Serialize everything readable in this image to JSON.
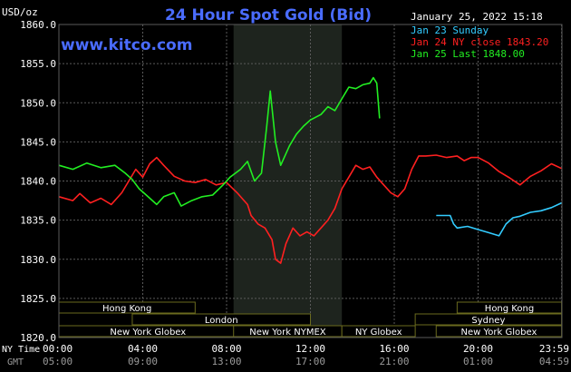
{
  "header": {
    "title": "24 Hour Spot Gold (Bid)",
    "unit_label": "USD/oz",
    "timestamp": "January 25, 2022 15:18",
    "site": "www.kitco.com"
  },
  "legend": [
    {
      "text": "Jan 23 Sunday",
      "color": "#33ccff"
    },
    {
      "text": "Jan 24 NY close 1843.20",
      "color": "#ff2020"
    },
    {
      "text": "Jan 25 Last 1848.00",
      "color": "#22ee22"
    }
  ],
  "row_labels": {
    "ny_time": "NY Time",
    "gmt": "GMT"
  },
  "sessions": [
    {
      "name": "Hong Kong",
      "start": "00:00",
      "end": "06:30",
      "row": 1
    },
    {
      "name": "London",
      "start": "03:30",
      "end": "12:00",
      "row": 2
    },
    {
      "name": "New York Globex",
      "start": "00:00",
      "end": "08:30",
      "row": 3
    },
    {
      "name": "New York NYMEX",
      "start": "08:20",
      "end": "13:30",
      "row": 3
    },
    {
      "name": "NY Globex",
      "start": "13:30",
      "end": "17:00",
      "row": 3
    },
    {
      "name": "Hong Kong",
      "start": "19:00",
      "end": "23:59",
      "row": 1
    },
    {
      "name": "Sydney",
      "start": "17:00",
      "end": "23:59",
      "row": 2
    },
    {
      "name": "New York Globex",
      "start": "18:00",
      "end": "23:59",
      "row": 3
    }
  ],
  "colors": {
    "background": "#000000",
    "grid": "#5a5a5a",
    "axis_text": "#ffffff",
    "title": "#4a6cff",
    "nymex_shade": "#1e241e",
    "session_bar": "#6a6a1e",
    "session_text": "#ffffff"
  },
  "chart_data": {
    "type": "line",
    "ylim": [
      1820,
      1860
    ],
    "yticks": [
      "1860.0",
      "1855.0",
      "1850.0",
      "1845.0",
      "1840.0",
      "1835.0",
      "1830.0",
      "1825.0",
      "1820.0"
    ],
    "ytick_values": [
      1860,
      1855,
      1850,
      1845,
      1840,
      1835,
      1830,
      1825,
      1820
    ],
    "x_ticks_ny": [
      "00:00",
      "04:00",
      "08:00",
      "12:00",
      "16:00",
      "20:00",
      "23:59"
    ],
    "x_ticks_gmt": [
      "05:00",
      "09:00",
      "13:00",
      "17:00",
      "21:00",
      "01:00",
      "04:59"
    ],
    "x_tick_hours": [
      0,
      4,
      8,
      12,
      16,
      20,
      23.983
    ],
    "shaded_region": [
      "08:20",
      "13:30"
    ],
    "series": [
      {
        "name": "Jan 23 Sunday",
        "color": "#33ccff",
        "points": [
          [
            "18:00",
            1835.6
          ],
          [
            "18:30",
            1835.6
          ],
          [
            "18:40",
            1835.6
          ],
          [
            "18:50",
            1834.5
          ],
          [
            "19:00",
            1834.0
          ],
          [
            "19:30",
            1834.2
          ],
          [
            "20:00",
            1833.8
          ],
          [
            "20:30",
            1833.4
          ],
          [
            "21:00",
            1833.0
          ],
          [
            "21:20",
            1834.5
          ],
          [
            "21:40",
            1835.3
          ],
          [
            "22:00",
            1835.5
          ],
          [
            "22:30",
            1836.0
          ],
          [
            "23:00",
            1836.2
          ],
          [
            "23:30",
            1836.6
          ],
          [
            "23:59",
            1837.2
          ]
        ]
      },
      {
        "name": "Jan 24 NY close 1843.20",
        "color": "#ff2020",
        "points": [
          [
            "00:00",
            1838.0
          ],
          [
            "00:40",
            1837.5
          ],
          [
            "01:00",
            1838.4
          ],
          [
            "01:30",
            1837.2
          ],
          [
            "02:00",
            1837.8
          ],
          [
            "02:30",
            1837.0
          ],
          [
            "03:00",
            1838.5
          ],
          [
            "03:20",
            1840.0
          ],
          [
            "03:40",
            1841.5
          ],
          [
            "04:00",
            1840.5
          ],
          [
            "04:20",
            1842.2
          ],
          [
            "04:40",
            1843.0
          ],
          [
            "05:00",
            1842.0
          ],
          [
            "05:30",
            1840.6
          ],
          [
            "06:00",
            1840.0
          ],
          [
            "06:30",
            1839.8
          ],
          [
            "07:00",
            1840.2
          ],
          [
            "07:30",
            1839.5
          ],
          [
            "08:00",
            1839.8
          ],
          [
            "08:30",
            1838.5
          ],
          [
            "08:50",
            1837.5
          ],
          [
            "09:00",
            1837.0
          ],
          [
            "09:10",
            1835.6
          ],
          [
            "09:30",
            1834.5
          ],
          [
            "09:50",
            1834.0
          ],
          [
            "10:10",
            1832.5
          ],
          [
            "10:20",
            1830.0
          ],
          [
            "10:35",
            1829.5
          ],
          [
            "10:50",
            1832.0
          ],
          [
            "11:10",
            1834.0
          ],
          [
            "11:30",
            1833.0
          ],
          [
            "11:50",
            1833.5
          ],
          [
            "12:10",
            1833.0
          ],
          [
            "12:30",
            1834.0
          ],
          [
            "12:50",
            1835.0
          ],
          [
            "13:10",
            1836.5
          ],
          [
            "13:30",
            1839.0
          ],
          [
            "13:50",
            1840.5
          ],
          [
            "14:10",
            1842.0
          ],
          [
            "14:30",
            1841.5
          ],
          [
            "14:50",
            1841.8
          ],
          [
            "15:10",
            1840.5
          ],
          [
            "15:30",
            1839.5
          ],
          [
            "15:50",
            1838.5
          ],
          [
            "16:10",
            1838.0
          ],
          [
            "16:30",
            1839.0
          ],
          [
            "16:50",
            1841.5
          ],
          [
            "17:10",
            1843.2
          ],
          [
            "17:30",
            1843.2
          ],
          [
            "18:00",
            1843.3
          ],
          [
            "18:30",
            1843.0
          ],
          [
            "19:00",
            1843.2
          ],
          [
            "19:20",
            1842.6
          ],
          [
            "19:40",
            1843.0
          ],
          [
            "20:00",
            1843.0
          ],
          [
            "20:30",
            1842.3
          ],
          [
            "21:00",
            1841.2
          ],
          [
            "21:30",
            1840.4
          ],
          [
            "22:00",
            1839.5
          ],
          [
            "22:30",
            1840.6
          ],
          [
            "23:00",
            1841.3
          ],
          [
            "23:30",
            1842.2
          ],
          [
            "23:59",
            1841.6
          ]
        ]
      },
      {
        "name": "Jan 25 Last 1848.00",
        "color": "#22ee22",
        "points": [
          [
            "00:00",
            1842.0
          ],
          [
            "00:40",
            1841.5
          ],
          [
            "01:20",
            1842.3
          ],
          [
            "02:00",
            1841.7
          ],
          [
            "02:40",
            1842.0
          ],
          [
            "03:10",
            1841.0
          ],
          [
            "03:30",
            1840.2
          ],
          [
            "03:50",
            1839.0
          ],
          [
            "04:10",
            1838.2
          ],
          [
            "04:40",
            1837.0
          ],
          [
            "05:00",
            1838.0
          ],
          [
            "05:30",
            1838.5
          ],
          [
            "05:50",
            1836.8
          ],
          [
            "06:20",
            1837.5
          ],
          [
            "06:50",
            1838.0
          ],
          [
            "07:20",
            1838.2
          ],
          [
            "07:50",
            1839.5
          ],
          [
            "08:10",
            1840.5
          ],
          [
            "08:40",
            1841.5
          ],
          [
            "09:00",
            1842.5
          ],
          [
            "09:20",
            1840.0
          ],
          [
            "09:40",
            1841.0
          ],
          [
            "09:55",
            1847.0
          ],
          [
            "10:05",
            1851.5
          ],
          [
            "10:20",
            1845.0
          ],
          [
            "10:35",
            1842.0
          ],
          [
            "11:00",
            1844.5
          ],
          [
            "11:20",
            1846.0
          ],
          [
            "11:40",
            1847.0
          ],
          [
            "12:00",
            1847.8
          ],
          [
            "12:30",
            1848.5
          ],
          [
            "12:50",
            1849.5
          ],
          [
            "13:10",
            1849.0
          ],
          [
            "13:30",
            1850.5
          ],
          [
            "13:50",
            1852.0
          ],
          [
            "14:10",
            1851.8
          ],
          [
            "14:30",
            1852.3
          ],
          [
            "14:50",
            1852.5
          ],
          [
            "15:00",
            1853.2
          ],
          [
            "15:10",
            1852.5
          ],
          [
            "15:18",
            1848.0
          ]
        ]
      }
    ]
  }
}
